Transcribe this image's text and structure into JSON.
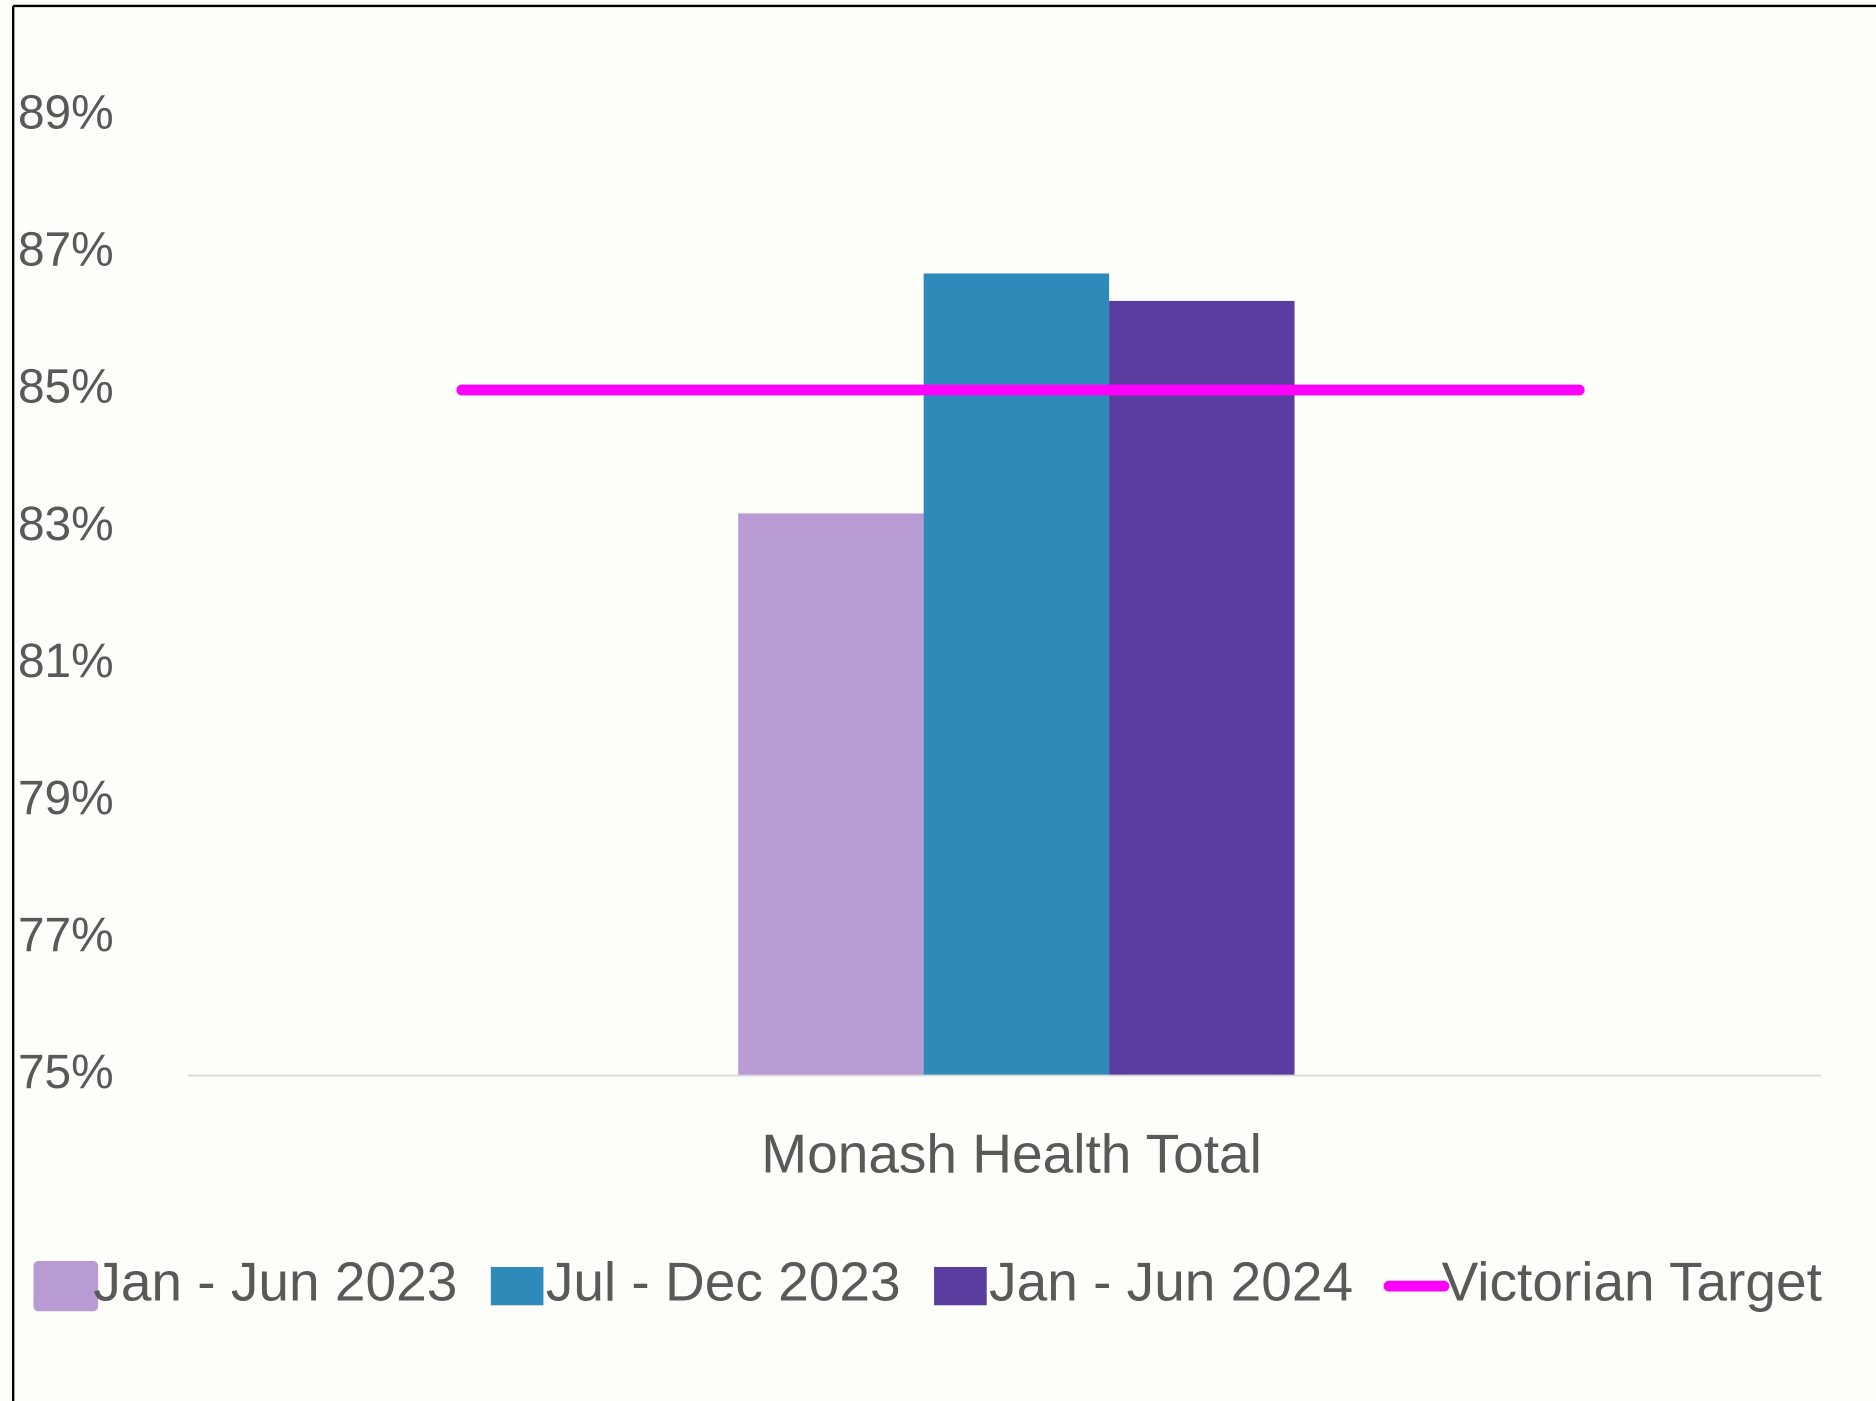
{
  "chart_data": {
    "type": "bar",
    "categories": [
      "Monash Health Total"
    ],
    "series": [
      {
        "name": "Jan - Jun 2023",
        "color": "#b89bd2",
        "values": [
          83.2
        ]
      },
      {
        "name": "Jul - Dec 2023",
        "color": "#2e8bb9",
        "values": [
          86.7
        ]
      },
      {
        "name": "Jan - Jun 2024",
        "color": "#5a3d9f",
        "values": [
          86.3
        ]
      },
      {
        "name": "Victorian Target",
        "color": "#ff00ff",
        "type": "line",
        "values": [
          85
        ]
      }
    ],
    "ylim": [
      75,
      90.6
    ],
    "yticks": [
      {
        "value": 75,
        "label": "75%"
      },
      {
        "value": 77,
        "label": "77%"
      },
      {
        "value": 79,
        "label": "79%"
      },
      {
        "value": 81,
        "label": "81%"
      },
      {
        "value": 83,
        "label": "83%"
      },
      {
        "value": 85,
        "label": "85%"
      },
      {
        "value": 87,
        "label": "87%"
      },
      {
        "value": 89,
        "label": "89%"
      }
    ],
    "grid": false,
    "legend": "bottom"
  }
}
